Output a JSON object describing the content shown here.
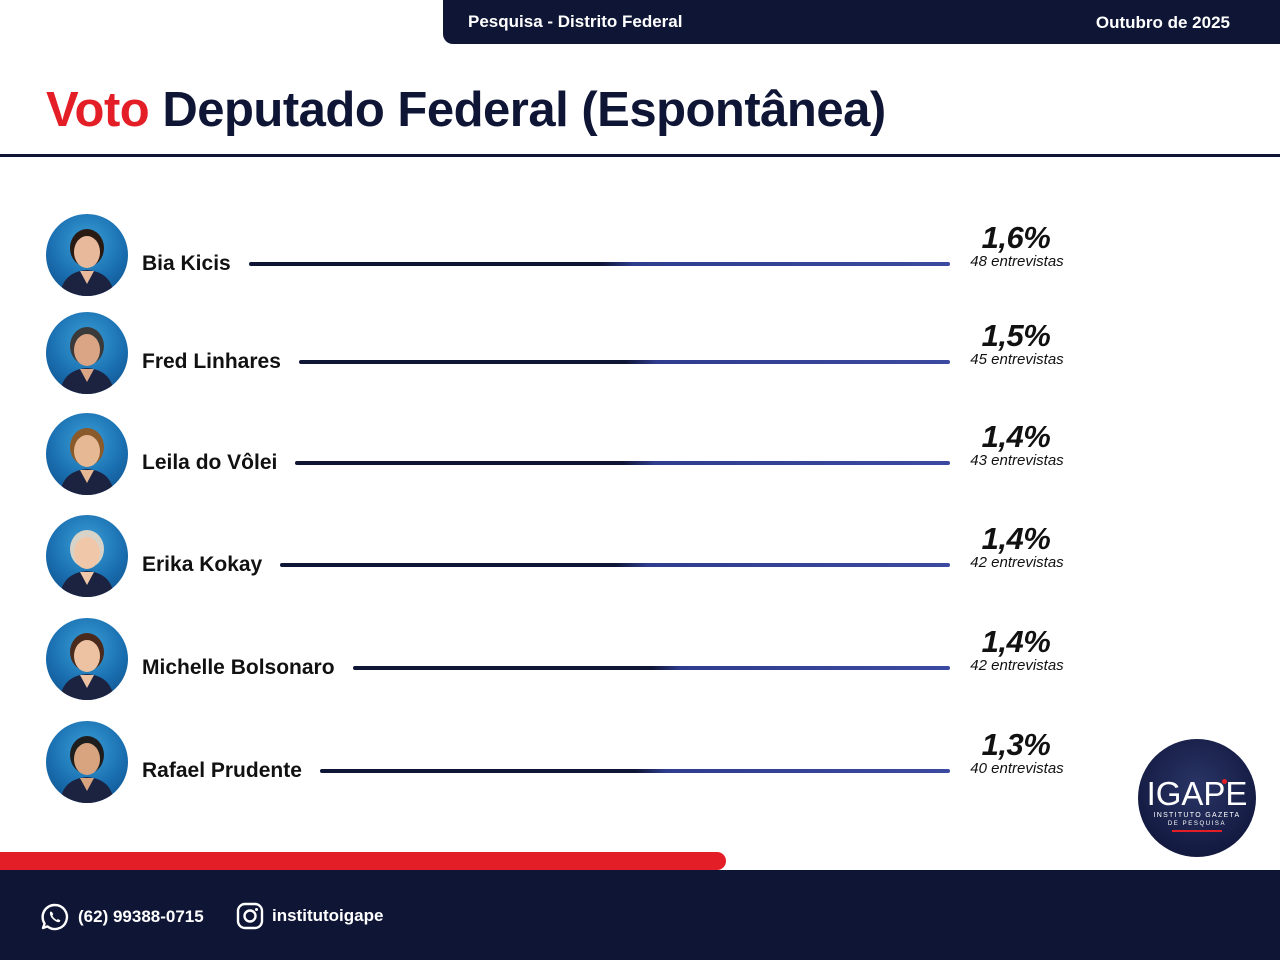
{
  "header": {
    "survey": "Pesquisa - Distrito Federal",
    "date": "Outubro de 2025"
  },
  "title": {
    "accent": "Voto",
    "main": "Deputado Federal (Espontânea)"
  },
  "chart_data": {
    "type": "bar",
    "title": "Voto Deputado Federal (Espontânea)",
    "categories": [
      "Bia Kicis",
      "Fred Linhares",
      "Leila do Vôlei",
      "Erika Kokay",
      "Michelle Bolsonaro",
      "Rafael Prudente"
    ],
    "values": [
      1.6,
      1.5,
      1.4,
      1.4,
      1.4,
      1.3
    ],
    "labels": [
      "1,6%",
      "1,5%",
      "1,4%",
      "1,4%",
      "1,4%",
      "1,3%"
    ],
    "counts": [
      "48 entrevistas",
      "45 entrevistas",
      "43 entrevistas",
      "42 entrevistas",
      "42 entrevistas",
      "40 entrevistas"
    ],
    "unit": "%"
  },
  "logo": {
    "brand": "IGAPE",
    "line1": "INSTITUTO GAZETA",
    "line2": "DE PESQUISA"
  },
  "footer": {
    "phone": "(62) 99388-0715",
    "instagram": "institutoigape"
  },
  "colors": {
    "navy": "#0f1535",
    "red": "#e41e26",
    "line_blue": "#3b4aa0"
  },
  "icons": {
    "phone": "whatsapp-icon",
    "instagram": "instagram-icon"
  }
}
